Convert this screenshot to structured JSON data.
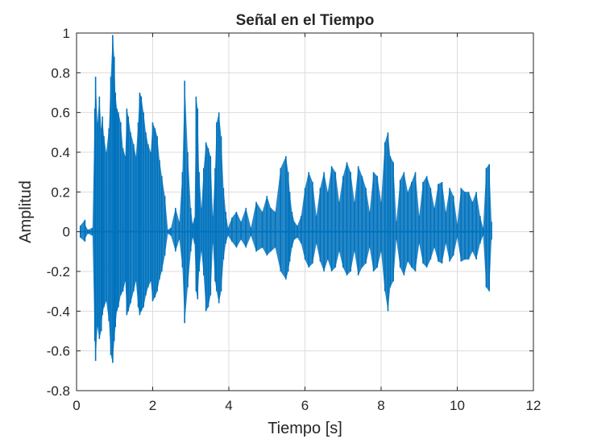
{
  "chart_data": {
    "type": "line",
    "title": "Señal en el Tiempo",
    "xlabel": "Tiempo [s]",
    "ylabel": "Amplitud",
    "xlim": [
      0,
      12
    ],
    "ylim": [
      -0.8,
      1
    ],
    "xticks": [
      0,
      2,
      4,
      6,
      8,
      10,
      12
    ],
    "xtick_labels": [
      "0",
      "2",
      "4",
      "6",
      "8",
      "10",
      "12"
    ],
    "yticks": [
      -0.8,
      -0.6,
      -0.4,
      -0.2,
      0,
      0.2,
      0.4,
      0.6,
      0.8,
      1
    ],
    "ytick_labels": [
      "-0.8",
      "-0.6",
      "-0.4",
      "-0.2",
      "0",
      "0.2",
      "0.4",
      "0.6",
      "0.8",
      "1"
    ],
    "grid": true,
    "legend": false,
    "colors": {
      "line": "#0072BD",
      "grid": "#dcdcdc",
      "axes": "#262626"
    },
    "series": [
      {
        "x": [
          0.1,
          0.22,
          0.23,
          0.3,
          0.42,
          0.48,
          0.5,
          0.55,
          0.6,
          0.65,
          0.68,
          0.72,
          0.78,
          0.85,
          0.9,
          0.95,
          0.99,
          1.02,
          1.06,
          1.1,
          1.16,
          1.22,
          1.28,
          1.32,
          1.36,
          1.42,
          1.5,
          1.56,
          1.62,
          1.66,
          1.7,
          1.76,
          1.82,
          1.88,
          1.95,
          2.0,
          2.06,
          2.12,
          2.18,
          2.24,
          2.32,
          2.4,
          2.48,
          2.6,
          2.7,
          2.78,
          2.84,
          2.92,
          3.0,
          3.05,
          3.1,
          3.14,
          3.18,
          3.22,
          3.28,
          3.34,
          3.4,
          3.46,
          3.52,
          3.58,
          3.64,
          3.68,
          3.74,
          3.8,
          3.86,
          3.92,
          3.98,
          4.08,
          4.2,
          4.32,
          4.45,
          4.58,
          4.72,
          4.88,
          5.0,
          5.1,
          5.22,
          5.36,
          5.5,
          5.56,
          5.6,
          5.66,
          5.72,
          5.8,
          5.9,
          6.0,
          6.1,
          6.2,
          6.3,
          6.4,
          6.5,
          6.6,
          6.7,
          6.8,
          6.9,
          7.0,
          7.1,
          7.2,
          7.3,
          7.4,
          7.5,
          7.6,
          7.7,
          7.8,
          7.9,
          8.0,
          8.1,
          8.18,
          8.24,
          8.32,
          8.4,
          8.5,
          8.6,
          8.7,
          8.8,
          8.9,
          9.0,
          9.1,
          9.2,
          9.3,
          9.4,
          9.5,
          9.6,
          9.7,
          9.8,
          9.9,
          10.0,
          10.1,
          10.2,
          10.3,
          10.4,
          10.5,
          10.6,
          10.68,
          10.76,
          10.84,
          10.9
        ],
        "upper": [
          0.03,
          0.06,
          0.03,
          0.01,
          0.02,
          0.62,
          0.78,
          0.55,
          0.68,
          0.52,
          0.58,
          0.48,
          0.4,
          0.52,
          0.78,
          0.99,
          0.88,
          0.7,
          0.62,
          0.6,
          0.55,
          0.42,
          0.38,
          0.62,
          0.58,
          0.5,
          0.44,
          0.38,
          0.55,
          0.7,
          0.68,
          0.6,
          0.5,
          0.44,
          0.4,
          0.55,
          0.52,
          0.48,
          0.36,
          0.28,
          0.18,
          0.01,
          0.02,
          0.12,
          0.05,
          0.3,
          0.76,
          0.4,
          0.12,
          0.04,
          0.07,
          0.68,
          0.62,
          0.3,
          0.12,
          0.32,
          0.45,
          0.42,
          0.38,
          0.08,
          0.32,
          0.55,
          0.6,
          0.48,
          0.22,
          0.1,
          0.02,
          0.07,
          0.1,
          0.05,
          0.12,
          0.02,
          0.15,
          0.1,
          0.18,
          0.12,
          0.1,
          0.32,
          0.38,
          0.3,
          0.2,
          0.1,
          0.05,
          0.03,
          0.08,
          0.22,
          0.3,
          0.25,
          0.08,
          0.22,
          0.3,
          0.2,
          0.33,
          0.3,
          0.15,
          0.28,
          0.35,
          0.3,
          0.15,
          0.33,
          0.28,
          0.22,
          0.1,
          0.3,
          0.28,
          0.15,
          0.45,
          0.5,
          0.38,
          0.35,
          0.05,
          0.26,
          0.3,
          0.2,
          0.25,
          0.3,
          0.08,
          0.25,
          0.28,
          0.22,
          0.12,
          0.24,
          0.25,
          0.1,
          0.22,
          0.18,
          0.04,
          0.22,
          0.2,
          0.2,
          0.15,
          0.2,
          0.08,
          0.02,
          0.32,
          0.34,
          0.05
        ],
        "lower": [
          -0.03,
          -0.05,
          -0.03,
          -0.01,
          -0.02,
          -0.55,
          -0.65,
          -0.48,
          -0.54,
          -0.5,
          -0.42,
          -0.38,
          -0.35,
          -0.45,
          -0.62,
          -0.66,
          -0.55,
          -0.48,
          -0.4,
          -0.38,
          -0.32,
          -0.3,
          -0.25,
          -0.42,
          -0.4,
          -0.36,
          -0.3,
          -0.25,
          -0.38,
          -0.42,
          -0.4,
          -0.38,
          -0.32,
          -0.28,
          -0.25,
          -0.35,
          -0.33,
          -0.3,
          -0.24,
          -0.2,
          -0.12,
          -0.01,
          -0.02,
          -0.1,
          -0.04,
          -0.18,
          -0.46,
          -0.28,
          -0.1,
          -0.03,
          -0.06,
          -0.3,
          -0.34,
          -0.2,
          -0.1,
          -0.22,
          -0.4,
          -0.38,
          -0.32,
          -0.06,
          -0.25,
          -0.3,
          -0.36,
          -0.3,
          -0.14,
          -0.06,
          -0.02,
          -0.05,
          -0.08,
          -0.04,
          -0.08,
          -0.02,
          -0.1,
          -0.08,
          -0.12,
          -0.1,
          -0.08,
          -0.2,
          -0.24,
          -0.2,
          -0.15,
          -0.08,
          -0.04,
          -0.03,
          -0.06,
          -0.14,
          -0.18,
          -0.16,
          -0.06,
          -0.15,
          -0.2,
          -0.14,
          -0.2,
          -0.18,
          -0.1,
          -0.18,
          -0.22,
          -0.2,
          -0.1,
          -0.22,
          -0.18,
          -0.16,
          -0.08,
          -0.2,
          -0.18,
          -0.1,
          -0.3,
          -0.4,
          -0.28,
          -0.25,
          -0.04,
          -0.18,
          -0.22,
          -0.15,
          -0.18,
          -0.2,
          -0.06,
          -0.16,
          -0.18,
          -0.14,
          -0.08,
          -0.15,
          -0.16,
          -0.06,
          -0.15,
          -0.12,
          -0.03,
          -0.15,
          -0.14,
          -0.14,
          -0.1,
          -0.14,
          -0.06,
          -0.02,
          -0.28,
          -0.3,
          -0.04
        ]
      }
    ]
  }
}
